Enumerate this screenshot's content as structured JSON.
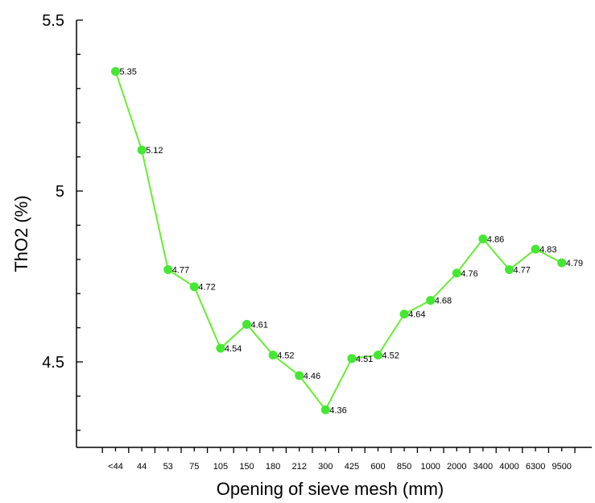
{
  "chart_data": {
    "type": "line",
    "title": "",
    "xlabel": "Opening of sieve mesh (mm)",
    "ylabel": "ThO2 (%)",
    "categories": [
      "<44",
      "44",
      "53",
      "75",
      "105",
      "150",
      "180",
      "212",
      "300",
      "425",
      "600",
      "850",
      "1000",
      "2000",
      "3400",
      "4000",
      "6300",
      "9500"
    ],
    "series": [
      {
        "values": [
          5.35,
          5.12,
          4.77,
          4.72,
          4.54,
          4.61,
          4.52,
          4.46,
          4.36,
          4.51,
          4.52,
          4.64,
          4.68,
          4.76,
          4.86,
          4.77,
          4.83,
          4.79
        ],
        "labels": [
          "5.35",
          "5.12",
          "4.77",
          "4.72",
          "4.54",
          "4.61",
          "4.52",
          "4.46",
          "4.36",
          "4.51",
          "4.52",
          "4.64",
          "4.68",
          "4.76",
          "4.86",
          "4.77",
          "4.83",
          "4.79"
        ]
      }
    ],
    "ylim": [
      4.25,
      5.5
    ],
    "yticks": [
      "4.5",
      "5",
      "5.5"
    ],
    "line_color": "#66ee33",
    "marker_color": "#44e833",
    "grid": false,
    "legend": "none"
  }
}
